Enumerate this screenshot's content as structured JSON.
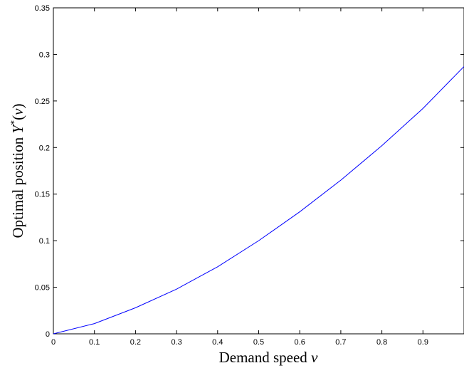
{
  "chart_data": {
    "type": "line",
    "xlabel": {
      "text": "Demand speed",
      "symbol": "v"
    },
    "ylabel": {
      "text": "Optimal position",
      "symbol_main": "Y",
      "symbol_sup": "*",
      "symbol_open": "(",
      "symbol_arg": "v",
      "symbol_close": ")"
    },
    "xlim": [
      0,
      1
    ],
    "ylim": [
      0,
      0.35
    ],
    "xticks": [
      0,
      0.1,
      0.2,
      0.3,
      0.4,
      0.5,
      0.6,
      0.7,
      0.8,
      0.9
    ],
    "xtick_labels": [
      "0",
      "0.1",
      "0.2",
      "0.3",
      "0.4",
      "0.5",
      "0.6",
      "0.7",
      "0.8",
      "0.9"
    ],
    "yticks": [
      0,
      0.05,
      0.1,
      0.15,
      0.2,
      0.25,
      0.3,
      0.35
    ],
    "ytick_labels": [
      "0",
      "0.05",
      "0.1",
      "0.15",
      "0.2",
      "0.25",
      "0.3",
      "0.35"
    ],
    "grid": false,
    "series": [
      {
        "color": "#0000ff",
        "x": [
          0,
          0.1,
          0.2,
          0.3,
          0.4,
          0.5,
          0.6,
          0.7,
          0.8,
          0.9,
          1.0
        ],
        "values": [
          0,
          0.011,
          0.028,
          0.048,
          0.072,
          0.1,
          0.131,
          0.165,
          0.202,
          0.242,
          0.287
        ]
      }
    ]
  }
}
